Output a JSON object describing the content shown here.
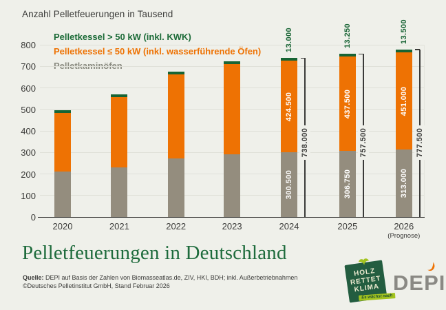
{
  "page": {
    "background": "#EFF0EA"
  },
  "chart": {
    "title": "Anzahl Pelletfeuerungen in Tausend"
  },
  "legend": {
    "items": [
      {
        "label": "Pelletkessel > 50 kW (inkl. KWK)",
        "color": "#1C6B38"
      },
      {
        "label": "Pelletkessel ≤ 50 kW (inkl. wasserführende Öfen)",
        "color": "#EE7203"
      },
      {
        "label": "Pelletkaminöfen",
        "color": "#8B8C81"
      }
    ]
  },
  "chart_data": {
    "type": "bar",
    "stacked": true,
    "title": "Anzahl Pelletfeuerungen in Tausend",
    "unit": "Tausend",
    "categories": [
      "2020",
      "2021",
      "2022",
      "2023",
      "2024",
      "2025",
      "2026"
    ],
    "x_note": {
      "2026": "(Prognose)"
    },
    "ylim": [
      0,
      800
    ],
    "yticks": [
      0,
      100,
      200,
      300,
      400,
      500,
      600,
      700,
      800
    ],
    "grid": "horizontal",
    "legend_position": "top-left-inside",
    "series": [
      {
        "name": "Pelletkaminöfen",
        "color": "#948D7E",
        "values": [
          211,
          232,
          273,
          291,
          300.5,
          306.75,
          313
        ]
      },
      {
        "name": "Pelletkessel ≤ 50 kW (inkl. wasserführende Öfen)",
        "color": "#EE7203",
        "values": [
          273,
          325,
          390,
          418,
          424.5,
          437.5,
          451
        ]
      },
      {
        "name": "Pelletkessel > 50 kW (inkl. KWK)",
        "color": "#176434",
        "values": [
          11,
          13,
          13,
          13,
          13,
          13.25,
          13.5
        ]
      }
    ],
    "value_labels": {
      "2024": {
        "kaminoefen": "300.500",
        "kessel_le50": "424.500",
        "kessel_gt50": "13.000"
      },
      "2025": {
        "kaminoefen": "306.750",
        "kessel_le50": "437.500",
        "kessel_gt50": "13.250"
      },
      "2026": {
        "kaminoefen": "313.000",
        "kessel_le50": "451.000",
        "kessel_gt50": "13.500"
      }
    },
    "totals_shown": {
      "2024": "738.000",
      "2025": "757.500",
      "2026": "777.500"
    }
  },
  "footer": {
    "main_title": "Pelletfeuerungen in Deutschland",
    "source_label": "Quelle:",
    "source_rest": " DEPI auf Basis der Zahlen von Biomasseatlas.de, ZIV, HKI, BDH; inkl. Außerbetriebnahmen",
    "copyright": "©Deutsches Pelletinstitut GmbH, Stand Februar 2026"
  },
  "logos": {
    "holz": {
      "lines": [
        "HOLZ",
        "RETTET",
        "KLIMA"
      ],
      "ribbon": "Es wächst nach"
    },
    "depi": {
      "text": "DEPI"
    }
  }
}
